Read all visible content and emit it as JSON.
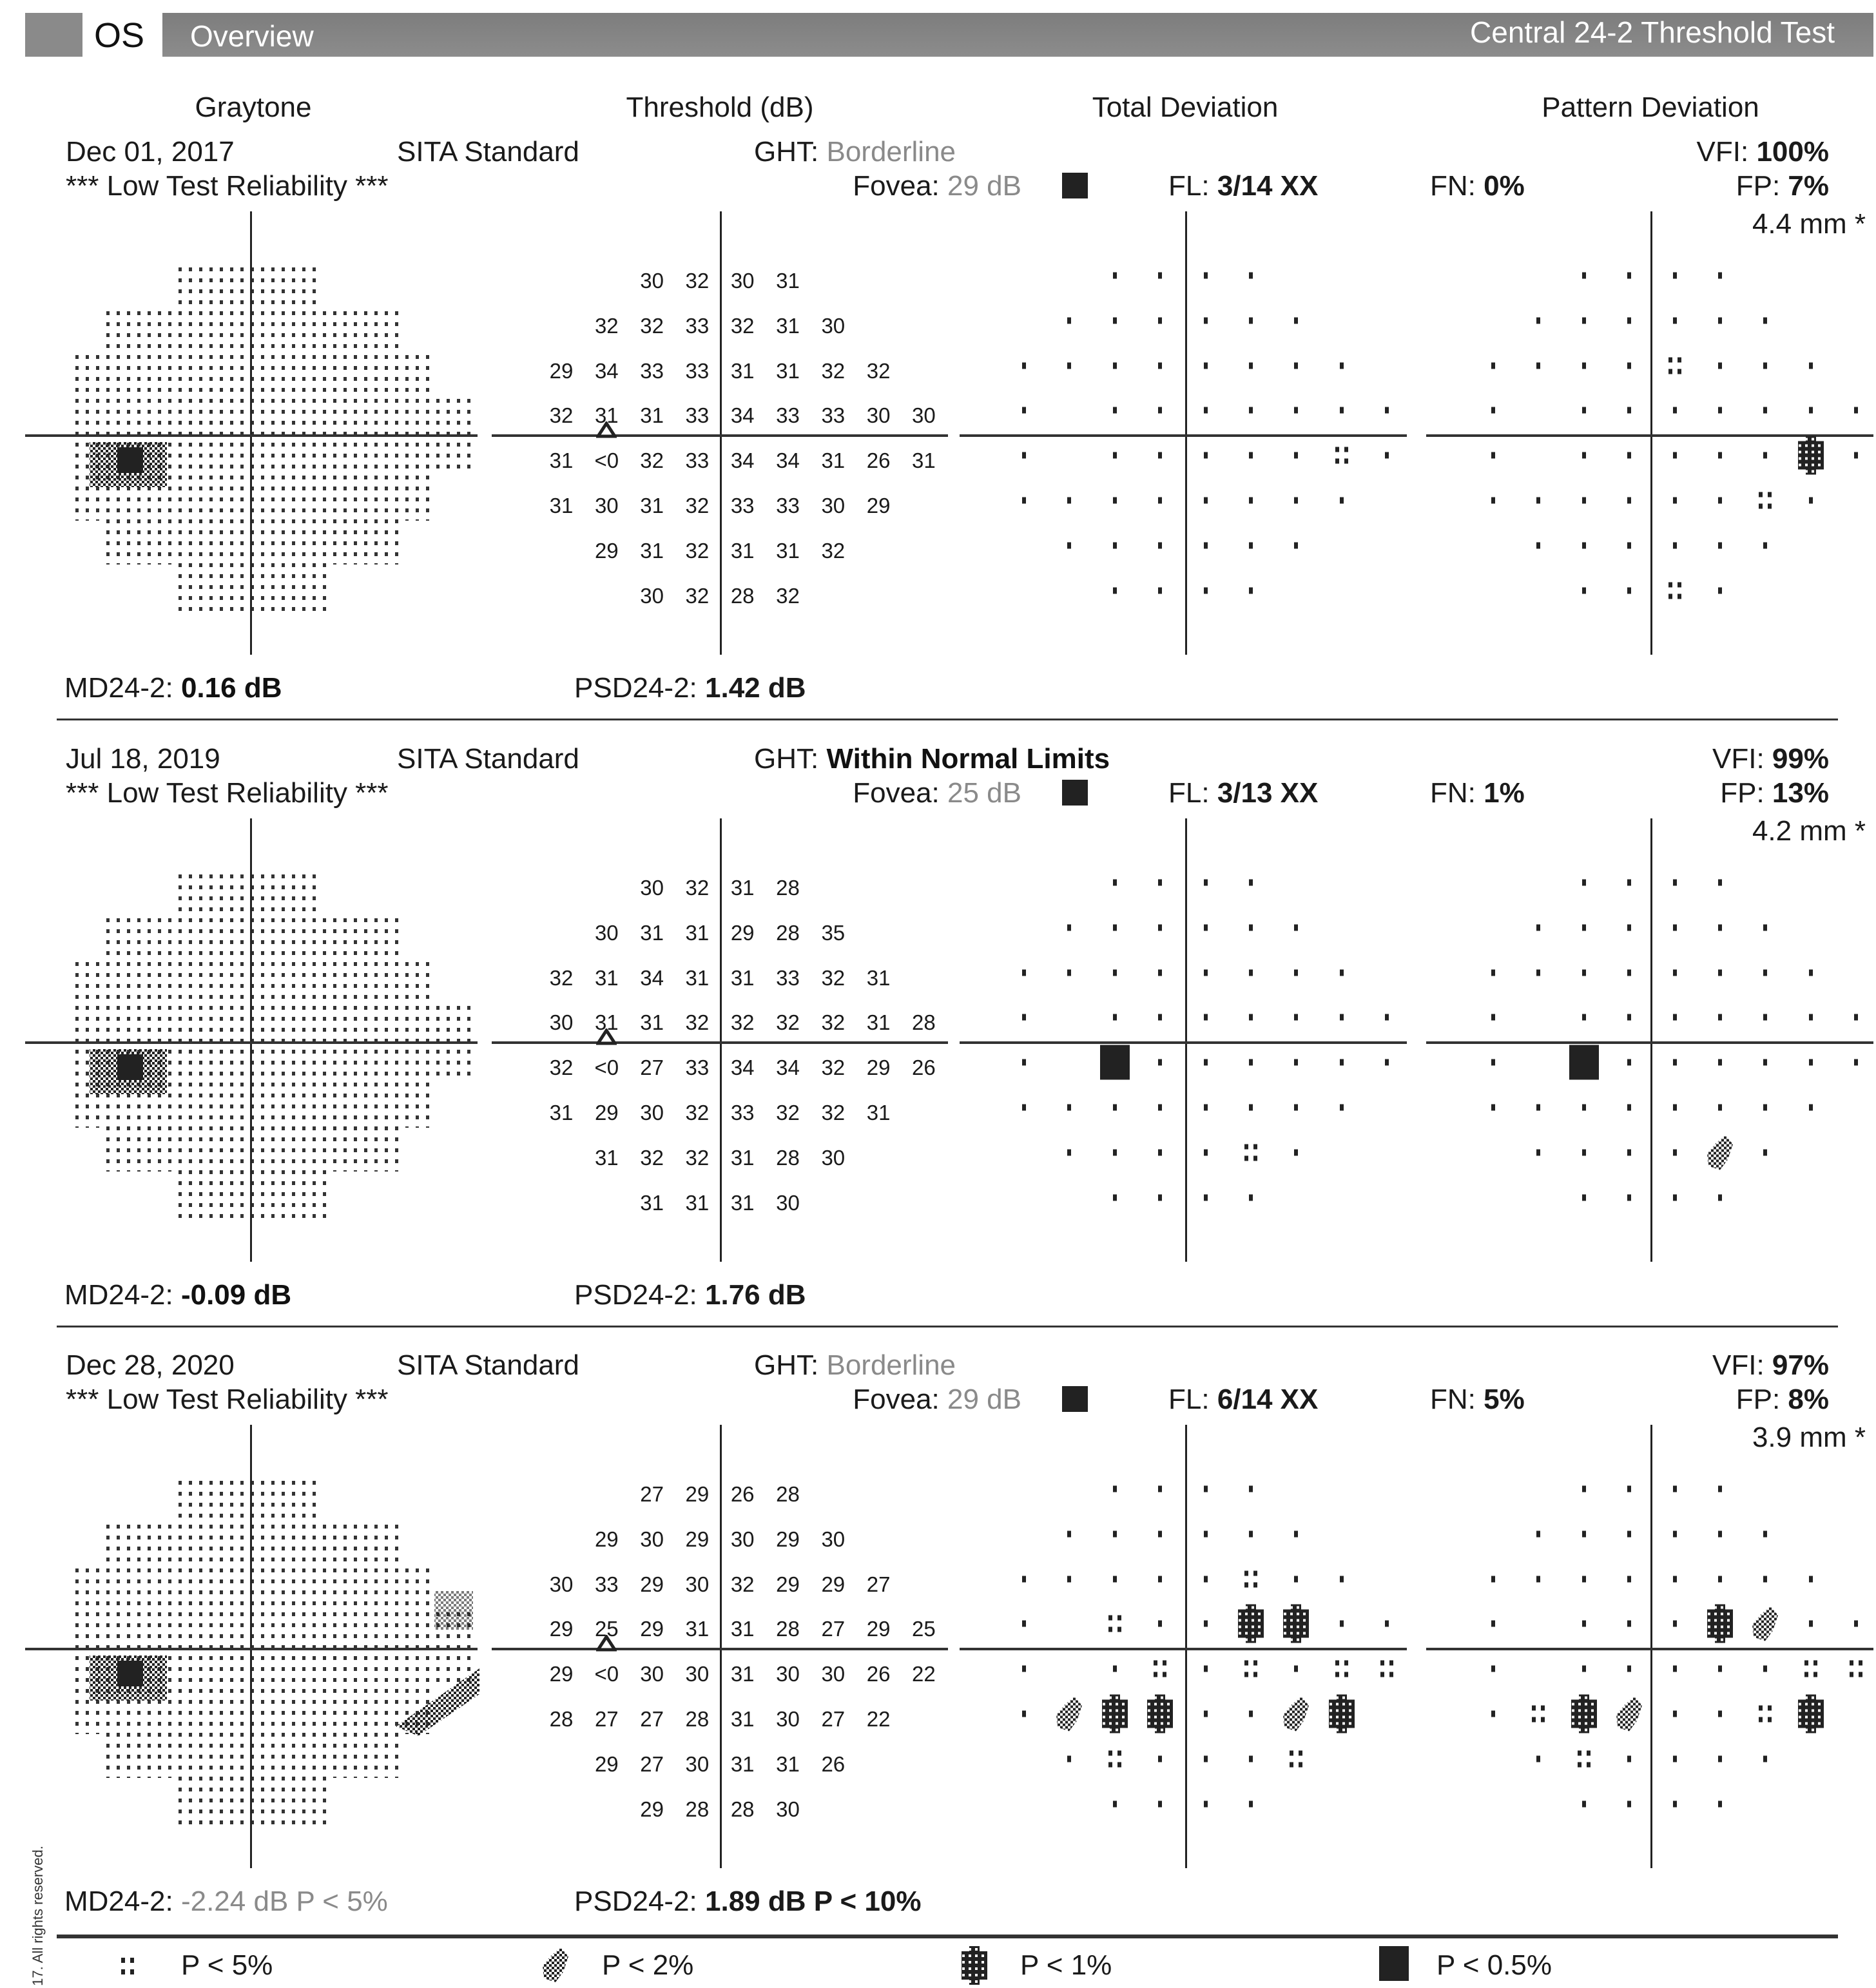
{
  "header": {
    "eye": "OS",
    "title": "Overview",
    "test_name": "Central 24-2 Threshold Test"
  },
  "columns": {
    "graytone": "Graytone",
    "threshold": "Threshold (dB)",
    "total_deviation": "Total Deviation",
    "pattern_deviation": "Pattern Deviation"
  },
  "labels": {
    "ght": "GHT:",
    "fovea": "Fovea:",
    "fl": "FL:",
    "fn": "FN:",
    "vfi": "VFI:",
    "fp": "FP:",
    "md": "MD24-2:",
    "psd": "PSD24-2:"
  },
  "tests": [
    {
      "date": "Dec 01, 2017",
      "strategy": "SITA Standard",
      "reliability": "*** Low Test Reliability ***",
      "ght_value": "Borderline",
      "ght_color": "#8a8a8a",
      "ght_bold": false,
      "fovea_value": "29 dB",
      "fl_value": "3/14 XX",
      "fn_value": "0%",
      "vfi_value": "100%",
      "fp_value": "7%",
      "pupil": "4.4 mm *",
      "md_value": "0.16 dB",
      "md_color": "#111111",
      "md_bold": true,
      "psd_value": "1.42 dB",
      "threshold": [
        [
          "30",
          "32",
          "30",
          "31"
        ],
        [
          "32",
          "32",
          "33",
          "32",
          "31",
          "30"
        ],
        [
          "29",
          "34",
          "33",
          "33",
          "31",
          "31",
          "32",
          "32"
        ],
        [
          "32",
          "31",
          "31",
          "33",
          "34",
          "33",
          "33",
          "30",
          "30"
        ],
        [
          "31",
          "<0",
          "32",
          "33",
          "34",
          "34",
          "31",
          "26",
          "31"
        ],
        [
          "31",
          "30",
          "31",
          "32",
          "33",
          "33",
          "30",
          "29"
        ],
        [
          "29",
          "31",
          "32",
          "31",
          "31",
          "32"
        ],
        [
          "30",
          "32",
          "28",
          "32"
        ]
      ],
      "total_deviation": [
        "  ....   ",
        " ......  ",
        "........ ",
        ". .......",
        ". .....s.",
        "........ ",
        " ......  ",
        "  ....   "
      ],
      "pattern_deviation": [
        "  ....   ",
        " ......  ",
        "....s... ",
        ". .......",
        ". .....d.",
        "......s. ",
        " ......  ",
        "  ..s.   "
      ],
      "graytone_extra": false
    },
    {
      "date": "Jul 18, 2019",
      "strategy": "SITA Standard",
      "reliability": "*** Low Test Reliability ***",
      "ght_value": "Within Normal Limits",
      "ght_color": "#111111",
      "ght_bold": true,
      "fovea_value": "25 dB",
      "fl_value": "3/13 XX",
      "fn_value": "1%",
      "vfi_value": "99%",
      "fp_value": "13%",
      "pupil": "4.2 mm *",
      "md_value": "-0.09 dB",
      "md_color": "#111111",
      "md_bold": true,
      "psd_value": "1.76 dB",
      "threshold": [
        [
          "30",
          "32",
          "31",
          "28"
        ],
        [
          "30",
          "31",
          "31",
          "29",
          "28",
          "35"
        ],
        [
          "32",
          "31",
          "34",
          "31",
          "31",
          "33",
          "32",
          "31"
        ],
        [
          "30",
          "31",
          "31",
          "32",
          "32",
          "32",
          "32",
          "31",
          "28"
        ],
        [
          "32",
          "<0",
          "27",
          "33",
          "34",
          "34",
          "32",
          "29",
          "26"
        ],
        [
          "31",
          "29",
          "30",
          "32",
          "33",
          "32",
          "32",
          "31"
        ],
        [
          "31",
          "32",
          "32",
          "31",
          "28",
          "30"
        ],
        [
          "31",
          "31",
          "31",
          "30"
        ]
      ],
      "total_deviation": [
        "  ....   ",
        " ......  ",
        "........ ",
        ". .......",
        ". b......",
        "........ ",
        " ....s.  ",
        "  ....   "
      ],
      "pattern_deviation": [
        "  ....   ",
        " ......  ",
        "........ ",
        ". .......",
        ". b......",
        "........ ",
        " ....c.  ",
        "  ....   "
      ],
      "graytone_extra": false
    },
    {
      "date": "Dec 28, 2020",
      "strategy": "SITA Standard",
      "reliability": "*** Low Test Reliability ***",
      "ght_value": "Borderline",
      "ght_color": "#8a8a8a",
      "ght_bold": false,
      "fovea_value": "29 dB",
      "fl_value": "6/14 XX",
      "fn_value": "5%",
      "vfi_value": "97%",
      "fp_value": "8%",
      "pupil": "3.9 mm *",
      "md_value": "-2.24 dB P < 5%",
      "md_color": "#8a8a8a",
      "md_bold": false,
      "psd_value": "1.89 dB P < 10%",
      "threshold": [
        [
          "27",
          "29",
          "26",
          "28"
        ],
        [
          "29",
          "30",
          "29",
          "30",
          "29",
          "30"
        ],
        [
          "30",
          "33",
          "29",
          "30",
          "32",
          "29",
          "29",
          "27"
        ],
        [
          "29",
          "25",
          "29",
          "31",
          "31",
          "28",
          "27",
          "29",
          "25"
        ],
        [
          "29",
          "<0",
          "30",
          "30",
          "31",
          "30",
          "30",
          "26",
          "22"
        ],
        [
          "28",
          "27",
          "27",
          "28",
          "31",
          "30",
          "27",
          "22"
        ],
        [
          "29",
          "27",
          "30",
          "31",
          "31",
          "26"
        ],
        [
          "29",
          "28",
          "28",
          "30"
        ]
      ],
      "total_deviation": [
        "  ....   ",
        " ......  ",
        ".....s.. ",
        ". s..dd..",
        ". .s.s.ss",
        ".cdd..cd ",
        " .s...s  ",
        "  ....   "
      ],
      "pattern_deviation": [
        "  ....   ",
        " ......  ",
        "........ ",
        ". ...dc..",
        ". .....ss",
        ".sdc..sd ",
        " .s....  ",
        "  ....   "
      ],
      "graytone_extra": true
    }
  ],
  "legend": [
    {
      "symbol": "s",
      "label": "P < 5%"
    },
    {
      "symbol": "c",
      "label": "P < 2%"
    },
    {
      "symbol": "d",
      "label": "P < 1%"
    },
    {
      "symbol": "b",
      "label": "P < 0.5%"
    }
  ],
  "side_note": "17. All rights reserved."
}
